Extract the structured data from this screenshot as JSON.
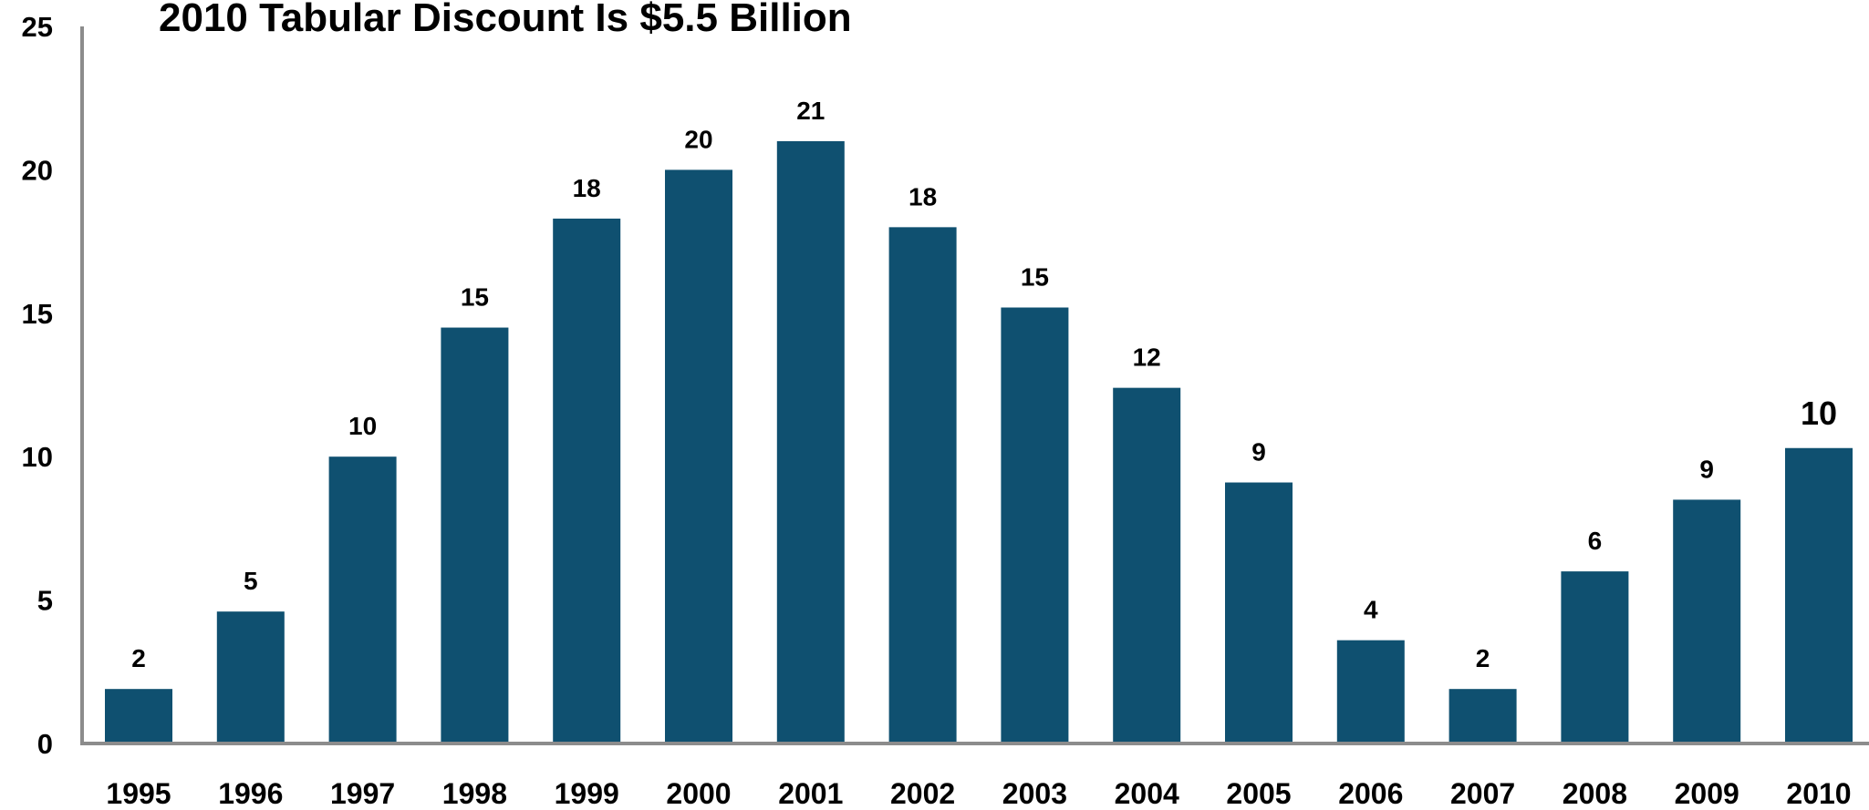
{
  "chart_data": {
    "type": "bar",
    "title": "2010 Tabular Discount Is $5.5 Billion",
    "xlabel": "",
    "ylabel": "",
    "ylim": [
      0,
      25
    ],
    "yticks": [
      0,
      5,
      10,
      15,
      20,
      25
    ],
    "grid": false,
    "legend": "none",
    "bar_color": "#0f5070",
    "axis_color": "#8c8c8c",
    "categories": [
      "1995",
      "1996",
      "1997",
      "1998",
      "1999",
      "2000",
      "2001",
      "2002",
      "2003",
      "2004",
      "2005",
      "2006",
      "2007",
      "2008",
      "2009",
      "2010"
    ],
    "values": [
      1.9,
      4.6,
      10.0,
      14.5,
      18.3,
      20.0,
      21.0,
      18.0,
      15.2,
      12.4,
      9.1,
      3.6,
      1.9,
      6.0,
      8.5,
      10.3
    ],
    "data_labels": [
      "2",
      "5",
      "10",
      "15",
      "18",
      "20",
      "21",
      "18",
      "15",
      "12",
      "9",
      "4",
      "2",
      "6",
      "9",
      "10"
    ]
  }
}
